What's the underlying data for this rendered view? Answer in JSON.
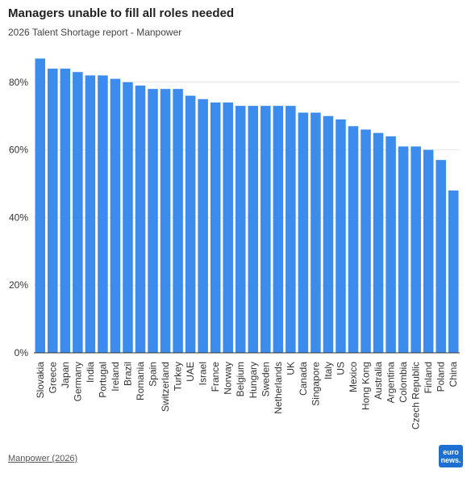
{
  "header": {
    "title": "Managers unable to fill all roles needed",
    "subtitle": "2026 Talent Shortage report - Manpower"
  },
  "footer": {
    "source": "Manpower (2026)",
    "logo_line1": "euro",
    "logo_line2": "news."
  },
  "colors": {
    "bar": "#3b8ced",
    "grid": "#e6e6e6",
    "axis": "#333333"
  },
  "chart_data": {
    "type": "bar",
    "title": "Managers unable to fill all roles needed",
    "subtitle": "2026 Talent Shortage report - Manpower",
    "xlabel": "",
    "ylabel": "",
    "ylim": [
      0,
      90
    ],
    "yticks": [
      0,
      20,
      40,
      60,
      80
    ],
    "ytick_labels": [
      "0%",
      "20%",
      "40%",
      "60%",
      "80%"
    ],
    "grid": true,
    "categories": [
      "Slovakia",
      "Greece",
      "Japan",
      "Germany",
      "India",
      "Portugal",
      "Ireland",
      "Brazil",
      "Romania",
      "Spain",
      "Switzerland",
      "Turkey",
      "UAE",
      "Israel",
      "France",
      "Norway",
      "Belgium",
      "Hungary",
      "Sweden",
      "Netherlands",
      "UK",
      "Canada",
      "Singapore",
      "Italy",
      "US",
      "Mexico",
      "Hong Kong",
      "Australia",
      "Argentina",
      "Colombia",
      "Czech Republic",
      "Finland",
      "Poland",
      "China"
    ],
    "values": [
      87,
      84,
      84,
      83,
      82,
      82,
      81,
      80,
      79,
      78,
      78,
      78,
      76,
      75,
      74,
      74,
      73,
      73,
      73,
      73,
      73,
      71,
      71,
      70,
      69,
      67,
      66,
      65,
      64,
      61,
      61,
      60,
      57,
      48
    ]
  }
}
